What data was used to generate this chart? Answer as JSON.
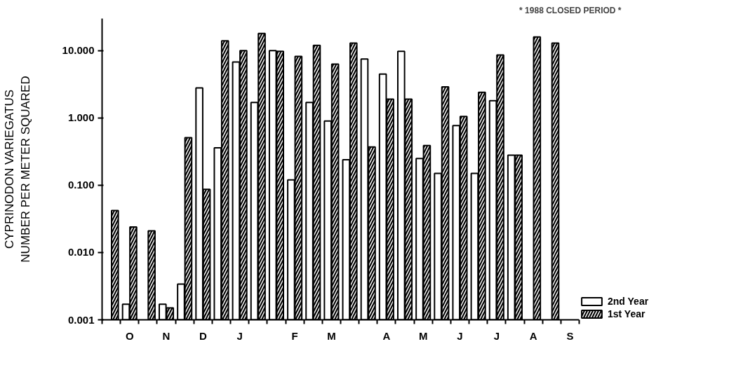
{
  "chart_data": {
    "type": "bar",
    "ylabel": "CYPRINODON VARIEGATUS\nNUMBER PER METER SQUARED",
    "annotations": [
      "* 1988 CLOSED PERIOD *"
    ],
    "categories": [
      null,
      "O",
      null,
      "N",
      null,
      "D",
      null,
      "J",
      null,
      null,
      "F",
      null,
      "M",
      null,
      null,
      "A",
      null,
      "M",
      null,
      "J",
      null,
      "J",
      null,
      "A",
      null,
      "S"
    ],
    "series": [
      {
        "name": "2nd Year",
        "color": "#ffffff",
        "values": [
          null,
          0.0017,
          null,
          0.0017,
          0.0034,
          2.8,
          0.36,
          6.8,
          1.7,
          10,
          0.12,
          1.7,
          0.9,
          0.24,
          7.5,
          4.5,
          9.8,
          0.25,
          0.15,
          0.77,
          0.15,
          1.8,
          0.28,
          null,
          null,
          null
        ]
      },
      {
        "name": "1st Year",
        "color": "#000000",
        "values": [
          0.042,
          0.024,
          0.021,
          0.0015,
          0.51,
          0.087,
          14,
          10,
          18,
          9.8,
          8.2,
          12,
          6.3,
          13,
          0.37,
          1.9,
          1.9,
          0.39,
          2.9,
          1.05,
          2.4,
          8.6,
          0.28,
          16,
          13,
          null
        ]
      }
    ],
    "log": true,
    "ylim": [
      0.001,
      30
    ],
    "yticks": [
      {
        "value": 0.001,
        "label": "0.001"
      },
      {
        "value": 0.01,
        "label": "0.010"
      },
      {
        "value": 0.1,
        "label": "0.100"
      },
      {
        "value": 1,
        "label": "1.000"
      },
      {
        "value": 10,
        "label": "10.000"
      }
    ],
    "legend": "bottom right"
  }
}
